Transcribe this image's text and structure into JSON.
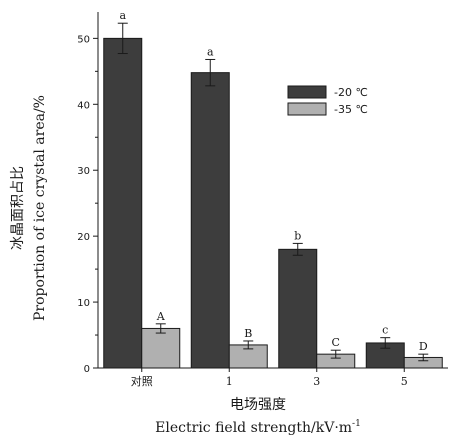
{
  "chart_data": {
    "type": "bar",
    "categories": [
      "对照",
      "1",
      "3",
      "5"
    ],
    "series": [
      {
        "name": "-20 ℃",
        "values": [
          50,
          44.8,
          18,
          3.8
        ],
        "errors": [
          2.3,
          2.0,
          0.9,
          0.8
        ],
        "labels": [
          "a",
          "a",
          "b",
          "c"
        ],
        "color": "#3d3d3d"
      },
      {
        "name": "-35 ℃",
        "values": [
          6,
          3.5,
          2.1,
          1.6
        ],
        "errors": [
          0.7,
          0.6,
          0.6,
          0.5
        ],
        "labels": [
          "A",
          "B",
          "C",
          "D"
        ],
        "color": "#b0b0b0"
      }
    ],
    "ylim": [
      0,
      54
    ],
    "yticks": [
      0,
      10,
      20,
      30,
      40,
      50
    ],
    "ylabel_cn": "冰晶面积占比",
    "ylabel_en": "Proportion of ice crystal area/%",
    "xlabel_cn": "电场强度",
    "xlabel_en": "Electric field strength/kV·m",
    "xlabel_en_sup": "-1",
    "legend_position": "top-right",
    "grid": false
  }
}
